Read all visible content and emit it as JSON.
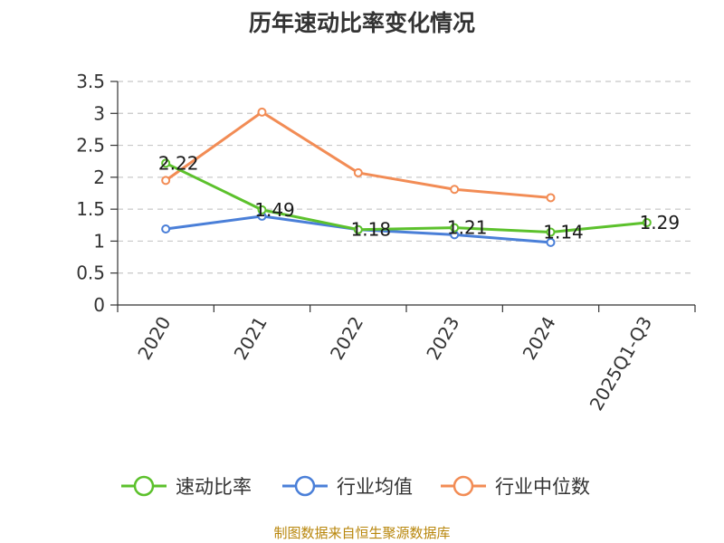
{
  "chart_data": {
    "type": "line",
    "title": "历年速动比率变化情况",
    "categories": [
      "2020",
      "2021",
      "2022",
      "2023",
      "2024",
      "2025Q1-Q3"
    ],
    "ylim": [
      0,
      3.5
    ],
    "yticks": [
      0,
      0.5,
      1,
      1.5,
      2,
      2.5,
      3,
      3.5
    ],
    "ytick_labels": [
      "0",
      "0.5",
      "1",
      "1.5",
      "2",
      "2.5",
      "3",
      "3.5"
    ],
    "grid": true,
    "legend_position": "bottom",
    "series": [
      {
        "name": "速动比率",
        "color": "#5cc12c",
        "values": [
          2.22,
          1.49,
          1.18,
          1.21,
          1.14,
          1.29
        ],
        "labels": [
          "2.22",
          "1.49",
          "1.18",
          "1.21",
          "1.14",
          "1.29"
        ]
      },
      {
        "name": "行业均值",
        "color": "#4a7fd8",
        "values": [
          1.19,
          1.39,
          1.18,
          1.1,
          0.98,
          null
        ]
      },
      {
        "name": "行业中位数",
        "color": "#f28c55",
        "values": [
          1.95,
          3.02,
          2.07,
          1.81,
          1.68,
          null
        ]
      }
    ]
  },
  "source_note": "制图数据来自恒生聚源数据库"
}
